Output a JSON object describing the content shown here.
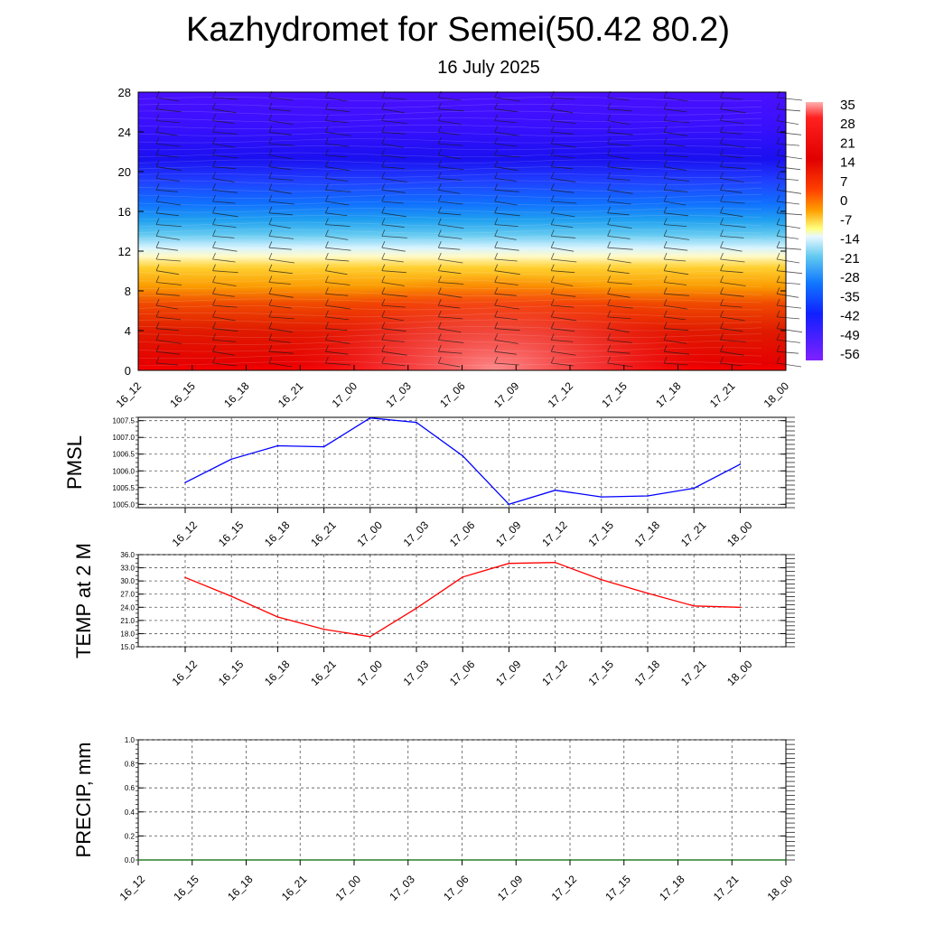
{
  "title": "Kazhydromet for Semei(50.42 80.2)",
  "subtitle": "16 July 2025",
  "time_labels": [
    "16_12",
    "16_15",
    "16_18",
    "16_21",
    "17_00",
    "17_03",
    "17_06",
    "17_09",
    "17_12",
    "17_15",
    "17_18",
    "17_21",
    "18_00"
  ],
  "colors": {
    "pmsl": "#0000ff",
    "temp": "#ff0000",
    "precip": "#006400",
    "grid": "#555555"
  },
  "chart_data": [
    {
      "type": "heatmap",
      "yticks": [
        "0",
        "4",
        "8",
        "12",
        "16",
        "20",
        "24",
        "28"
      ],
      "ylim": [
        0,
        28
      ],
      "x": [
        "16_12",
        "16_15",
        "16_18",
        "16_21",
        "17_00",
        "17_03",
        "17_06",
        "17_09",
        "17_12",
        "17_15",
        "17_18",
        "17_21",
        "18_00"
      ],
      "colorbar": {
        "labels": [
          "35",
          "28",
          "21",
          "14",
          "7",
          "0",
          "-7",
          "-14",
          "-21",
          "-28",
          "-35",
          "-42",
          "-49",
          "-56"
        ]
      }
    },
    {
      "type": "line",
      "ylabel": "PMSL",
      "ylim": [
        1004.9,
        1007.6
      ],
      "yticks": [
        "1005.0",
        "1005.5",
        "1006.0",
        "1006.5",
        "1007.0",
        "1007.5"
      ],
      "x": [
        "16_12",
        "16_15",
        "16_18",
        "16_21",
        "17_00",
        "17_03",
        "17_06",
        "17_09",
        "17_12",
        "17_15",
        "17_18",
        "17_21",
        "18_00"
      ],
      "values": [
        1005.65,
        1006.35,
        1006.75,
        1006.72,
        1007.58,
        1007.45,
        1006.45,
        1005.0,
        1005.42,
        1005.22,
        1005.25,
        1005.48,
        1006.2
      ]
    },
    {
      "type": "line",
      "ylabel": "TEMP at 2 M",
      "ylim": [
        15,
        36
      ],
      "yticks": [
        "15.0",
        "18.0",
        "21.0",
        "24.0",
        "27.0",
        "30.0",
        "33.0",
        "36.0"
      ],
      "x": [
        "16_12",
        "16_15",
        "16_18",
        "16_21",
        "17_00",
        "17_03",
        "17_06",
        "17_09",
        "17_12",
        "17_15",
        "17_18",
        "17_21",
        "18_00"
      ],
      "values": [
        30.8,
        26.5,
        21.8,
        19.0,
        17.3,
        23.8,
        30.9,
        34.0,
        34.2,
        30.3,
        27.2,
        24.3,
        24.0
      ]
    },
    {
      "type": "line",
      "ylabel": "PRECIP, mm",
      "ylim": [
        0,
        1
      ],
      "yticks": [
        "0.0",
        "0.2",
        "0.4",
        "0.6",
        "0.8",
        "1.0"
      ],
      "x": [
        "16_12",
        "16_15",
        "16_18",
        "16_21",
        "17_00",
        "17_03",
        "17_06",
        "17_09",
        "17_12",
        "17_15",
        "17_18",
        "17_21",
        "18_00"
      ],
      "values": [
        0,
        0,
        0,
        0,
        0,
        0,
        0,
        0,
        0,
        0,
        0,
        0,
        0
      ]
    }
  ]
}
